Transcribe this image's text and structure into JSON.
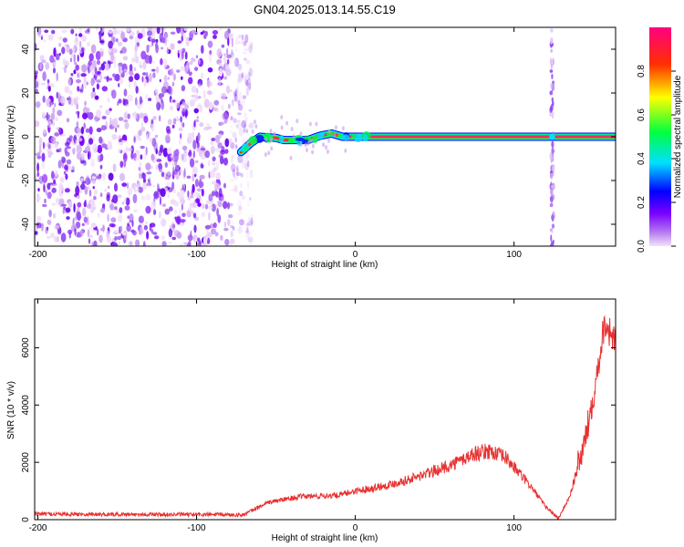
{
  "title": "GN04.2025.013.14.55.C19",
  "chart_data": [
    {
      "type": "heatmap",
      "title": "GN04.2025.013.14.55.C19",
      "xlabel": "Height of straight line (km)",
      "ylabel": "Frequency (Hz)",
      "xlim": [
        -202,
        164
      ],
      "ylim": [
        -50,
        50
      ],
      "x_ticks": [
        "-200",
        "-100",
        "0",
        "100"
      ],
      "y_ticks": [
        "-40",
        "-20",
        "0",
        "20",
        "40"
      ],
      "colorbar": {
        "label": "Normalized spectral amplitude",
        "range": [
          0,
          1
        ],
        "ticks": [
          "0.0",
          "0.2",
          "0.4",
          "0.6",
          "0.8"
        ],
        "colors": [
          "#f2e4f8",
          "#7a00ff",
          "#0000ff",
          "#00e0ff",
          "#00ff40",
          "#ffff00",
          "#ff3000",
          "#ff0080"
        ]
      },
      "noise_region_x": [
        -202,
        -65
      ],
      "signal_track": [
        {
          "x": -72,
          "y": -7
        },
        {
          "x": -66,
          "y": -3
        },
        {
          "x": -60,
          "y": 0
        },
        {
          "x": -50,
          "y": -0.5
        },
        {
          "x": -45,
          "y": -1.5
        },
        {
          "x": -30,
          "y": -1.5
        },
        {
          "x": -22,
          "y": 0.5
        },
        {
          "x": -15,
          "y": 1.5
        },
        {
          "x": -8,
          "y": 0
        },
        {
          "x": 0,
          "y": 0
        },
        {
          "x": 164,
          "y": 0
        }
      ],
      "vertical_artifact_x": 124,
      "grid": false
    },
    {
      "type": "line",
      "xlabel": "Height of straight line (km)",
      "ylabel": "SNR (10 * v/v)",
      "xlim": [
        -202,
        164
      ],
      "ylim": [
        0,
        7700
      ],
      "x_ticks": [
        "-200",
        "-100",
        "0",
        "100"
      ],
      "y_ticks": [
        "0",
        "2000",
        "4000",
        "6000"
      ],
      "series_color": "#e83030",
      "envelope": [
        {
          "x": -202,
          "y": 200
        },
        {
          "x": -120,
          "y": 180
        },
        {
          "x": -70,
          "y": 170
        },
        {
          "x": -55,
          "y": 600
        },
        {
          "x": -35,
          "y": 800
        },
        {
          "x": -10,
          "y": 850
        },
        {
          "x": 0,
          "y": 1000
        },
        {
          "x": 20,
          "y": 1200
        },
        {
          "x": 40,
          "y": 1500
        },
        {
          "x": 60,
          "y": 1900
        },
        {
          "x": 75,
          "y": 2300
        },
        {
          "x": 85,
          "y": 2400
        },
        {
          "x": 95,
          "y": 2150
        },
        {
          "x": 110,
          "y": 1200
        },
        {
          "x": 120,
          "y": 450
        },
        {
          "x": 128,
          "y": 40
        },
        {
          "x": 135,
          "y": 800
        },
        {
          "x": 145,
          "y": 2800
        },
        {
          "x": 152,
          "y": 5000
        },
        {
          "x": 157,
          "y": 6900
        },
        {
          "x": 164,
          "y": 6200
        }
      ],
      "grid": false
    }
  ]
}
